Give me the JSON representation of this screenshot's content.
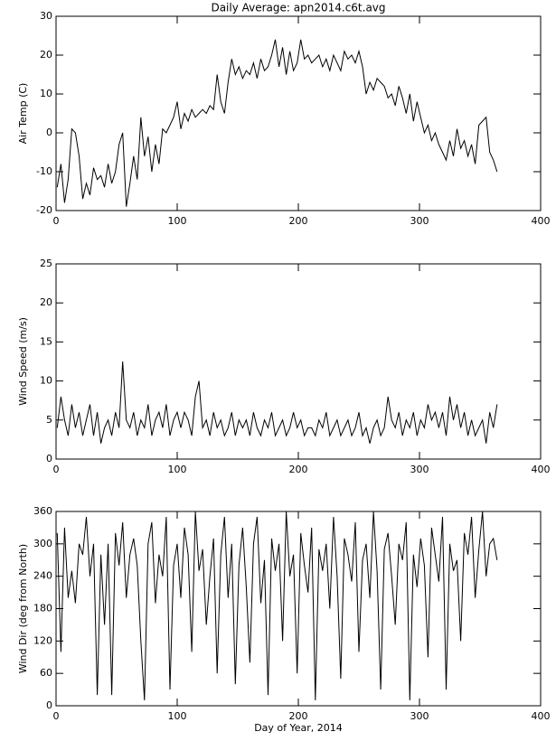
{
  "chart_data": [
    {
      "type": "line",
      "title": "Daily Average: apn2014.c6t.avg",
      "ylabel": "Air Temp (C)",
      "xlim": [
        0,
        400
      ],
      "xticks": [
        0,
        100,
        200,
        300,
        400
      ],
      "ylim": [
        -20,
        30
      ],
      "yticks": [
        -20,
        -10,
        0,
        10,
        20,
        30
      ],
      "color": "#000000",
      "x": [
        1,
        4,
        7,
        10,
        13,
        16,
        19,
        22,
        25,
        28,
        31,
        34,
        37,
        40,
        43,
        46,
        49,
        52,
        55,
        58,
        61,
        64,
        67,
        70,
        73,
        76,
        79,
        82,
        85,
        88,
        91,
        94,
        97,
        100,
        103,
        106,
        109,
        112,
        115,
        118,
        121,
        124,
        127,
        130,
        133,
        136,
        139,
        142,
        145,
        148,
        151,
        154,
        157,
        160,
        163,
        166,
        169,
        172,
        175,
        178,
        181,
        184,
        187,
        190,
        193,
        196,
        199,
        202,
        205,
        208,
        211,
        214,
        217,
        220,
        223,
        226,
        229,
        232,
        235,
        238,
        241,
        244,
        247,
        250,
        253,
        256,
        259,
        262,
        265,
        268,
        271,
        274,
        277,
        280,
        283,
        286,
        289,
        292,
        295,
        298,
        301,
        304,
        307,
        310,
        313,
        316,
        319,
        322,
        325,
        328,
        331,
        334,
        337,
        340,
        343,
        346,
        349,
        352,
        355,
        358,
        361,
        364
      ],
      "values": [
        -14,
        -8,
        -18,
        -12,
        1,
        0,
        -6,
        -17,
        -13,
        -16,
        -9,
        -12,
        -11,
        -14,
        -8,
        -13,
        -10,
        -3,
        0,
        -19,
        -13,
        -6,
        -12,
        4,
        -6,
        -1,
        -10,
        -3,
        -8,
        1,
        0,
        2,
        4,
        8,
        1,
        5,
        3,
        6,
        4,
        5,
        6,
        5,
        7,
        6,
        15,
        8,
        5,
        13,
        19,
        15,
        17,
        14,
        16,
        15,
        18,
        14,
        19,
        16,
        17,
        20,
        24,
        17,
        22,
        15,
        21,
        16,
        18,
        24,
        19,
        20,
        18,
        19,
        20,
        17,
        19,
        16,
        20,
        18,
        16,
        21,
        19,
        20,
        18,
        21,
        17,
        10,
        13,
        11,
        14,
        13,
        12,
        9,
        10,
        7,
        12,
        9,
        5,
        10,
        3,
        8,
        4,
        0,
        2,
        -2,
        0,
        -3,
        -5,
        -7,
        -2,
        -6,
        1,
        -4,
        -2,
        -6,
        -3,
        -8,
        2,
        3,
        4,
        -5,
        -7,
        -10
      ]
    },
    {
      "type": "line",
      "ylabel": "Wind Speed (m/s)",
      "xlim": [
        0,
        400
      ],
      "xticks": [
        0,
        100,
        200,
        300,
        400
      ],
      "ylim": [
        0,
        25
      ],
      "yticks": [
        0,
        5,
        10,
        15,
        20,
        25
      ],
      "color": "#000000",
      "x": [
        1,
        4,
        7,
        10,
        13,
        16,
        19,
        22,
        25,
        28,
        31,
        34,
        37,
        40,
        43,
        46,
        49,
        52,
        55,
        58,
        61,
        64,
        67,
        70,
        73,
        76,
        79,
        82,
        85,
        88,
        91,
        94,
        97,
        100,
        103,
        106,
        109,
        112,
        115,
        118,
        121,
        124,
        127,
        130,
        133,
        136,
        139,
        142,
        145,
        148,
        151,
        154,
        157,
        160,
        163,
        166,
        169,
        172,
        175,
        178,
        181,
        184,
        187,
        190,
        193,
        196,
        199,
        202,
        205,
        208,
        211,
        214,
        217,
        220,
        223,
        226,
        229,
        232,
        235,
        238,
        241,
        244,
        247,
        250,
        253,
        256,
        259,
        262,
        265,
        268,
        271,
        274,
        277,
        280,
        283,
        286,
        289,
        292,
        295,
        298,
        301,
        304,
        307,
        310,
        313,
        316,
        319,
        322,
        325,
        328,
        331,
        334,
        337,
        340,
        343,
        346,
        349,
        352,
        355,
        358,
        361,
        364
      ],
      "values": [
        4,
        8,
        5,
        3,
        7,
        4,
        6,
        3,
        5,
        7,
        3,
        6,
        2,
        4,
        5,
        3,
        6,
        4,
        12.5,
        5,
        4,
        6,
        3,
        5,
        4,
        7,
        3,
        5,
        6,
        4,
        7,
        3,
        5,
        6,
        4,
        6,
        5,
        3,
        8,
        10,
        4,
        5,
        3,
        6,
        4,
        5,
        3,
        4,
        6,
        3,
        5,
        4,
        5,
        3,
        6,
        4,
        3,
        5,
        4,
        6,
        3,
        4,
        5,
        3,
        4,
        6,
        4,
        5,
        3,
        4,
        4,
        3,
        5,
        4,
        6,
        3,
        4,
        5,
        3,
        4,
        5,
        3,
        4,
        6,
        3,
        4,
        2,
        4,
        5,
        3,
        4,
        8,
        5,
        4,
        6,
        3,
        5,
        4,
        6,
        3,
        5,
        4,
        7,
        5,
        6,
        4,
        6,
        3,
        8,
        5,
        7,
        4,
        6,
        3,
        5,
        3,
        4,
        5,
        2,
        6,
        4,
        7
      ]
    },
    {
      "type": "line",
      "ylabel": "Wind Dir (deg from North)",
      "xlabel": "Day of Year, 2014",
      "xlim": [
        0,
        400
      ],
      "xticks": [
        0,
        100,
        200,
        300,
        400
      ],
      "ylim": [
        0,
        360
      ],
      "yticks": [
        0,
        60,
        120,
        180,
        240,
        300,
        360
      ],
      "color": "#000000",
      "x": [
        1,
        4,
        7,
        10,
        13,
        16,
        19,
        22,
        25,
        28,
        31,
        34,
        37,
        40,
        43,
        46,
        49,
        52,
        55,
        58,
        61,
        64,
        67,
        70,
        73,
        76,
        79,
        82,
        85,
        88,
        91,
        94,
        97,
        100,
        103,
        106,
        109,
        112,
        115,
        118,
        121,
        124,
        127,
        130,
        133,
        136,
        139,
        142,
        145,
        148,
        151,
        154,
        157,
        160,
        163,
        166,
        169,
        172,
        175,
        178,
        181,
        184,
        187,
        190,
        193,
        196,
        199,
        202,
        205,
        208,
        211,
        214,
        217,
        220,
        223,
        226,
        229,
        232,
        235,
        238,
        241,
        244,
        247,
        250,
        253,
        256,
        259,
        262,
        265,
        268,
        271,
        274,
        277,
        280,
        283,
        286,
        289,
        292,
        295,
        298,
        301,
        304,
        307,
        310,
        313,
        316,
        319,
        322,
        325,
        328,
        331,
        334,
        337,
        340,
        343,
        346,
        349,
        352,
        355,
        358,
        361,
        364
      ],
      "values": [
        320,
        100,
        330,
        200,
        250,
        190,
        300,
        280,
        350,
        240,
        300,
        20,
        280,
        150,
        300,
        20,
        320,
        260,
        340,
        200,
        280,
        310,
        260,
        120,
        10,
        300,
        340,
        190,
        280,
        240,
        350,
        30,
        260,
        300,
        200,
        330,
        280,
        100,
        360,
        250,
        290,
        150,
        240,
        310,
        60,
        280,
        350,
        200,
        300,
        40,
        260,
        330,
        220,
        80,
        300,
        350,
        190,
        270,
        20,
        310,
        250,
        300,
        120,
        360,
        240,
        280,
        60,
        320,
        260,
        210,
        330,
        10,
        290,
        250,
        300,
        180,
        350,
        240,
        50,
        310,
        280,
        230,
        340,
        100,
        270,
        300,
        200,
        360,
        250,
        30,
        290,
        320,
        240,
        150,
        300,
        270,
        340,
        10,
        280,
        220,
        310,
        260,
        90,
        330,
        280,
        230,
        350,
        30,
        300,
        250,
        270,
        120,
        320,
        280,
        350,
        200,
        290,
        360,
        240,
        300,
        310,
        270
      ]
    }
  ]
}
